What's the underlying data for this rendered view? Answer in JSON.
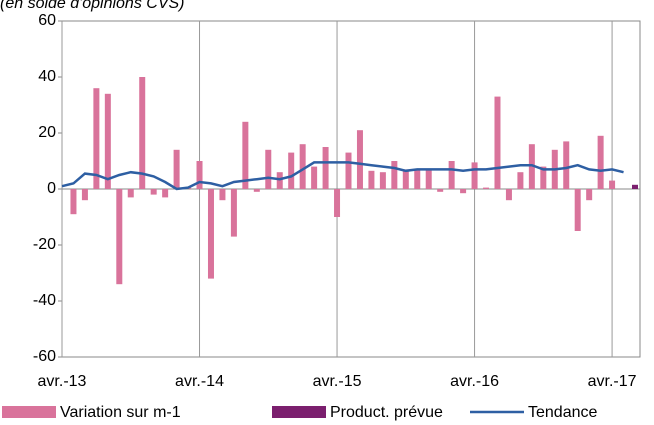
{
  "chart_data": {
    "type": "bar_line",
    "subtitle": "(en solde d'opinions CVS)",
    "categories": [
      "avr.-13",
      null,
      null,
      null,
      null,
      null,
      null,
      null,
      null,
      null,
      null,
      null,
      "avr.-14",
      null,
      null,
      null,
      null,
      null,
      null,
      null,
      null,
      null,
      null,
      null,
      "avr.-15",
      null,
      null,
      null,
      null,
      null,
      null,
      null,
      null,
      null,
      null,
      null,
      "avr.-16",
      null,
      null,
      null,
      null,
      null,
      null,
      null,
      null,
      null,
      null,
      null,
      "avr.-17",
      null,
      null
    ],
    "series": [
      {
        "name": "Variation sur m-1",
        "type": "bar",
        "color": "#d9739b",
        "values": [
          null,
          -9,
          -4,
          36,
          34,
          -34,
          -3,
          40,
          -2,
          -3,
          14,
          0.5,
          10,
          -32,
          -4,
          -17,
          24,
          -1,
          14,
          6,
          13,
          16,
          8,
          15,
          -10,
          13,
          21,
          6.5,
          6,
          10,
          7,
          7,
          7,
          -1,
          10,
          -1.5,
          9.5,
          0.5,
          33,
          -4,
          6,
          16,
          8,
          14,
          17,
          -15,
          -4,
          19,
          3,
          null,
          null
        ]
      },
      {
        "name": "Product. prévue",
        "type": "bar",
        "color": "#7b1f6e",
        "values": [
          null,
          null,
          null,
          null,
          null,
          null,
          null,
          null,
          null,
          null,
          null,
          null,
          null,
          null,
          null,
          null,
          null,
          null,
          null,
          null,
          null,
          null,
          null,
          null,
          null,
          null,
          null,
          null,
          null,
          null,
          null,
          null,
          null,
          null,
          null,
          null,
          null,
          null,
          null,
          null,
          null,
          null,
          null,
          null,
          null,
          null,
          null,
          null,
          null,
          null,
          1.5
        ]
      },
      {
        "name": "Tendance",
        "type": "line",
        "color": "#2e5fa3",
        "values": [
          1,
          2,
          5.5,
          5,
          3.5,
          5,
          6,
          5.5,
          4.5,
          2.5,
          0,
          0.5,
          2.5,
          2,
          1,
          2.5,
          3,
          3.5,
          4,
          3.5,
          4.5,
          7,
          9.5,
          9.5,
          9.5,
          9.5,
          9,
          8.5,
          8,
          7.5,
          6.5,
          7,
          7,
          7,
          7,
          6.5,
          7,
          7,
          7.5,
          8,
          8.5,
          8.5,
          7,
          7,
          7.5,
          8.5,
          7,
          6.5,
          7,
          6,
          null
        ]
      }
    ],
    "ylim": [
      -60,
      60
    ],
    "yticks": [
      -60,
      -40,
      -20,
      0,
      20,
      40,
      60
    ]
  }
}
